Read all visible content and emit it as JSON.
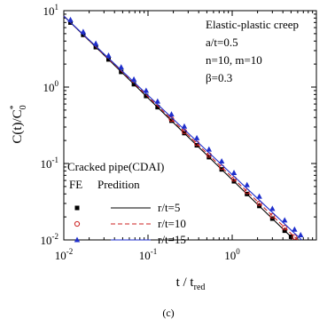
{
  "chart_data": {
    "type": "line",
    "x_label": {
      "text": "t / t",
      "subscript": "red"
    },
    "y_label": {
      "text": "C(t)/C",
      "superscript": "*",
      "subscript": "0"
    },
    "caption": "(c)",
    "annotations": [
      "Elastic-plastic creep",
      "a/t=0.5",
      "n=10, m=10",
      "β=0.3"
    ],
    "legend_title": "Cracked pipe(CDAI)",
    "legend_headers": [
      "FE",
      "Predition"
    ],
    "log_x": true,
    "log_y": true,
    "xlim": [
      0.01,
      10
    ],
    "ylim": [
      0.01,
      10
    ],
    "xticks": [
      {
        "value": 0.01,
        "label": "10",
        "exponent": "-2"
      },
      {
        "value": 0.1,
        "label": "10",
        "exponent": "-1"
      },
      {
        "value": 1,
        "label": "10",
        "exponent": "0"
      }
    ],
    "yticks": [
      {
        "value": 0.01,
        "label": "10",
        "exponent": "-2"
      },
      {
        "value": 0.1,
        "label": "10",
        "exponent": "-1"
      },
      {
        "value": 1,
        "label": "10",
        "exponent": "0"
      },
      {
        "value": 10,
        "label": "10",
        "exponent": "1"
      }
    ],
    "series": [
      {
        "name": "r/t=5",
        "color": "#000000",
        "marker": "square",
        "dash": false,
        "fe": {
          "x": [
            0.012,
            0.017,
            0.024,
            0.034,
            0.048,
            0.068,
            0.095,
            0.13,
            0.19,
            0.27,
            0.38,
            0.53,
            0.75,
            1.05,
            1.5,
            2.1,
            3.0,
            4.2,
            5.0
          ],
          "values": [
            6.98,
            4.82,
            3.33,
            2.3,
            1.58,
            1.09,
            0.764,
            0.546,
            0.363,
            0.25,
            0.173,
            0.121,
            0.0837,
            0.0585,
            0.0399,
            0.0278,
            0.019,
            0.0132,
            0.011
          ]
        },
        "prediction": {
          "x": [
            0.01,
            0.02,
            0.05,
            0.1,
            0.2,
            0.5,
            1,
            2,
            5,
            5.5
          ],
          "values": [
            8.5,
            4.05,
            1.52,
            0.72,
            0.343,
            0.129,
            0.0613,
            0.0292,
            0.011,
            0.01
          ]
        }
      },
      {
        "name": "r/t=10",
        "color": "#cc2222",
        "marker": "circle",
        "dash": true,
        "fe": {
          "x": [
            0.19,
            0.27,
            0.38,
            0.53,
            0.75,
            1.05,
            1.5,
            2.1,
            3.0,
            4.2,
            5.5
          ],
          "values": [
            0.38,
            0.262,
            0.183,
            0.129,
            0.0893,
            0.0627,
            0.043,
            0.0301,
            0.0207,
            0.0145,
            0.0109
          ]
        },
        "prediction": {
          "x": [
            0.01,
            0.02,
            0.05,
            0.1,
            0.2,
            0.5,
            1,
            2,
            5,
            6.0
          ],
          "values": [
            8.5,
            4.09,
            1.56,
            0.749,
            0.36,
            0.137,
            0.066,
            0.0318,
            0.0121,
            0.01
          ]
        }
      },
      {
        "name": "r/t=15",
        "color": "#1f2fcc",
        "marker": "triangle",
        "dash": false,
        "fe": {
          "x": [
            0.012,
            0.017,
            0.024,
            0.034,
            0.048,
            0.068,
            0.095,
            0.13,
            0.19,
            0.27,
            0.38,
            0.53,
            0.75,
            1.05,
            1.5,
            2.1,
            3.0,
            4.2,
            5.5,
            6.5
          ],
          "values": [
            7.57,
            5.28,
            3.71,
            2.59,
            1.82,
            1.26,
            0.898,
            0.65,
            0.44,
            0.306,
            0.215,
            0.153,
            0.107,
            0.0755,
            0.0524,
            0.037,
            0.0256,
            0.0181,
            0.0137,
            0.0116
          ]
        },
        "prediction": {
          "x": [
            0.01,
            0.02,
            0.05,
            0.1,
            0.2,
            0.5,
            1,
            2,
            5,
            6.7
          ],
          "values": [
            8.5,
            4.14,
            1.6,
            0.78,
            0.38,
            0.147,
            0.0716,
            0.0349,
            0.0135,
            0.01
          ]
        }
      }
    ]
  }
}
